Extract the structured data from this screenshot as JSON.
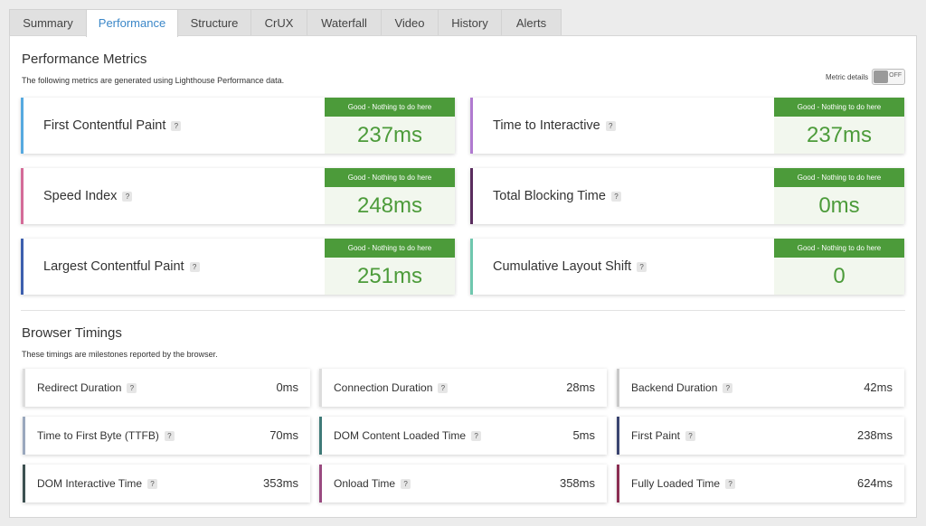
{
  "tabs": [
    "Summary",
    "Performance",
    "Structure",
    "CrUX",
    "Waterfall",
    "Video",
    "History",
    "Alerts"
  ],
  "active_tab": "Performance",
  "performance": {
    "title": "Performance Metrics",
    "description": "The following metrics are generated using Lighthouse Performance data.",
    "toggle_label": "Metric details",
    "toggle_state": "OFF",
    "metrics": [
      {
        "name": "First Contentful Paint",
        "status": "Good - Nothing to do here",
        "value": "237ms",
        "color": "#56a9e0"
      },
      {
        "name": "Time to Interactive",
        "status": "Good - Nothing to do here",
        "value": "237ms",
        "color": "#b07ad0"
      },
      {
        "name": "Speed Index",
        "status": "Good - Nothing to do here",
        "value": "248ms",
        "color": "#d46b98"
      },
      {
        "name": "Total Blocking Time",
        "status": "Good - Nothing to do here",
        "value": "0ms",
        "color": "#5a2d5e"
      },
      {
        "name": "Largest Contentful Paint",
        "status": "Good - Nothing to do here",
        "value": "251ms",
        "color": "#3d5fae"
      },
      {
        "name": "Cumulative Layout Shift",
        "status": "Good - Nothing to do here",
        "value": "0",
        "color": "#6fc7ae"
      }
    ],
    "status_color": "#4c9b3a"
  },
  "browser": {
    "title": "Browser Timings",
    "description": "These timings are milestones reported by the browser.",
    "timings": [
      {
        "name": "Redirect Duration",
        "value": "0ms",
        "color": "#dddddd"
      },
      {
        "name": "Connection Duration",
        "value": "28ms",
        "color": "#dddddd"
      },
      {
        "name": "Backend Duration",
        "value": "42ms",
        "color": "#c9c9c9"
      },
      {
        "name": "Time to First Byte (TTFB)",
        "value": "70ms",
        "color": "#9aa8bd"
      },
      {
        "name": "DOM Content Loaded Time",
        "value": "5ms",
        "color": "#3f7a78"
      },
      {
        "name": "First Paint",
        "value": "238ms",
        "color": "#3a4470"
      },
      {
        "name": "DOM Interactive Time",
        "value": "353ms",
        "color": "#3c5050"
      },
      {
        "name": "Onload Time",
        "value": "358ms",
        "color": "#9a4b80"
      },
      {
        "name": "Fully Loaded Time",
        "value": "624ms",
        "color": "#8b2e52"
      }
    ]
  },
  "help_glyph": "?"
}
